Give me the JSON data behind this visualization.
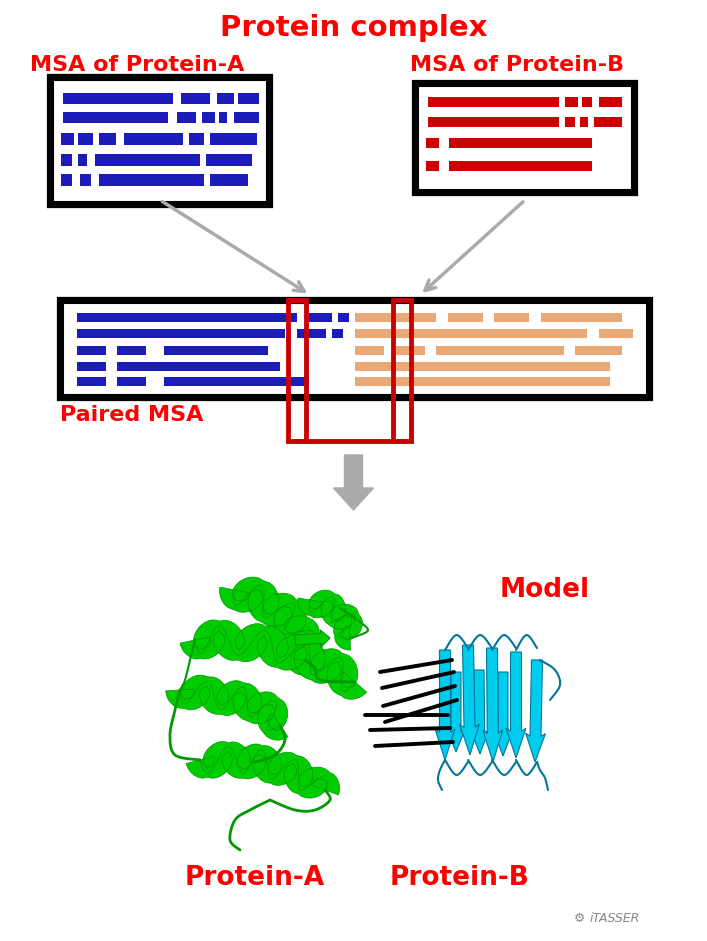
{
  "title": "Protein complex",
  "title_color": "#FF0000",
  "title_fontsize": 21,
  "bg_color": "#FFFFFF",
  "msa_a_label": "MSA of Protein-A",
  "msa_b_label": "MSA of Protein-B",
  "paired_label": "Paired MSA",
  "model_label": "Model",
  "protein_a_label": "Protein-A",
  "protein_b_label": "Protein-B",
  "itasser_label": "iTASSER",
  "label_color": "#FF0000",
  "label_fontsize": 16,
  "blue_color": "#1C1CB8",
  "red_color": "#CC0000",
  "orange_color": "#E8A878",
  "arrow_color": "#AAAAAA",
  "red_color2": "#CC0000",
  "black_color": "#000000",
  "green_color": "#00CC00",
  "dark_green": "#009900",
  "cyan_color": "#00CCEE",
  "dark_cyan": "#007799"
}
